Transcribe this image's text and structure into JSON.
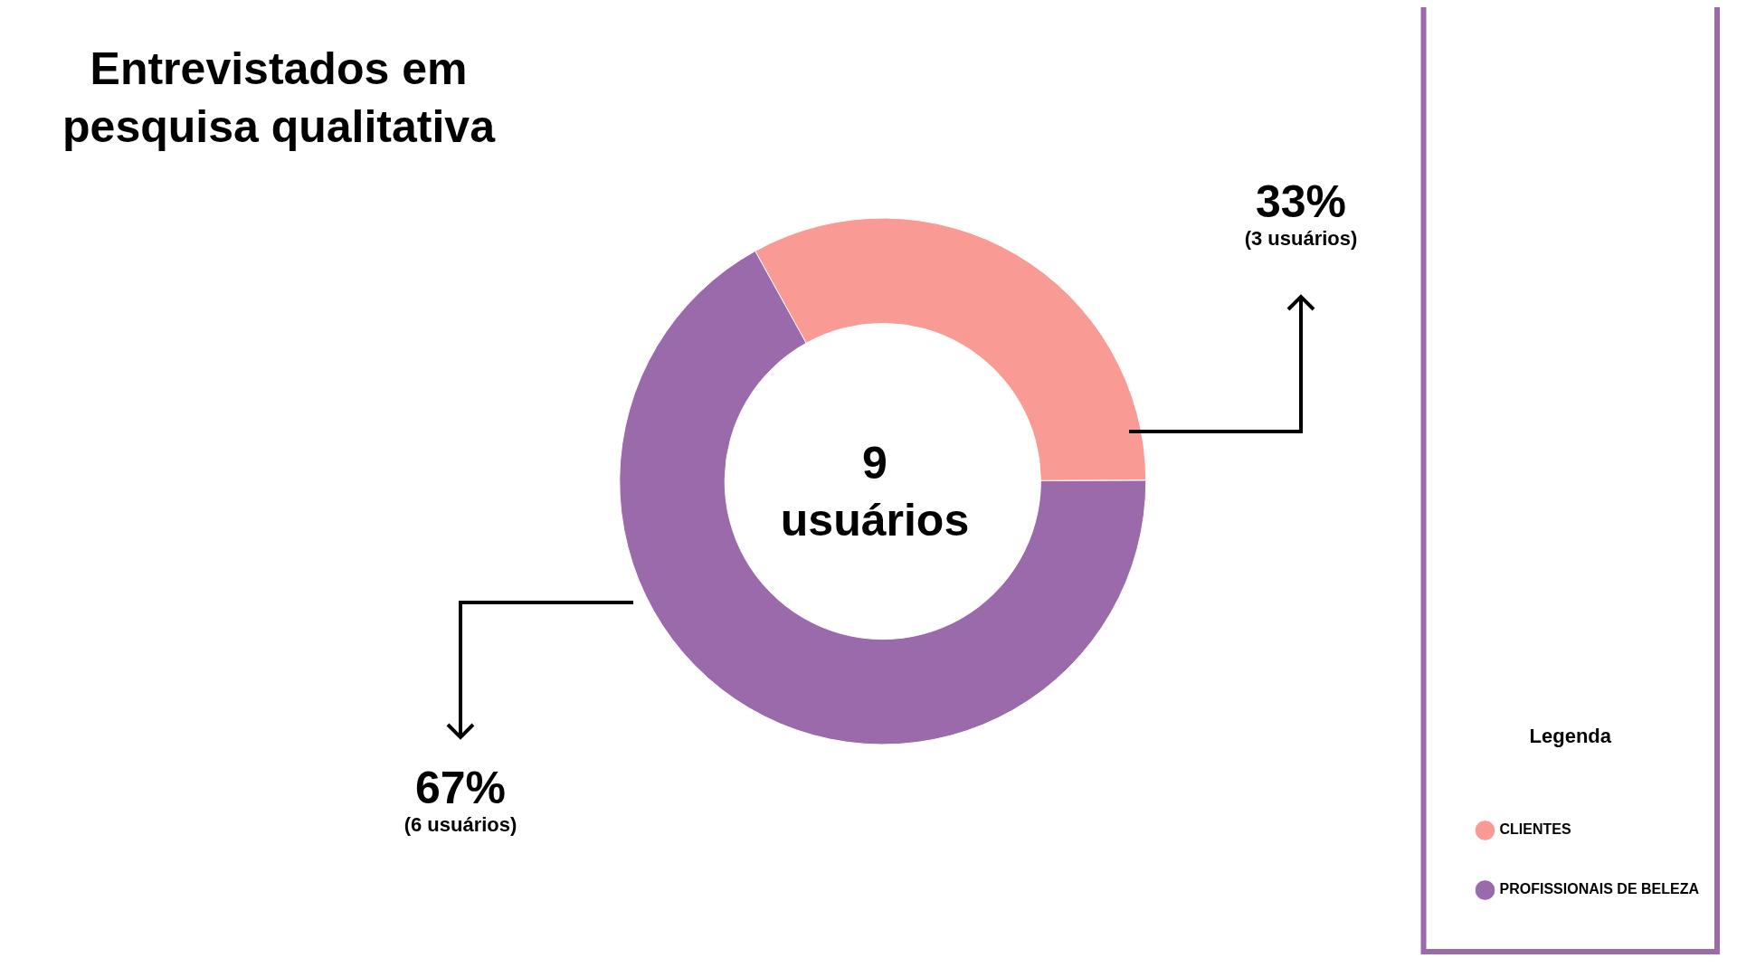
{
  "chart_data": {
    "type": "donut",
    "title": "Entrevistados em pesquisa qualitativa",
    "categories": [
      "CLIENTES",
      "PROFISSIONAIS DE BELEZA"
    ],
    "values": [
      33,
      67
    ],
    "colors": [
      "#f99b94",
      "#9a6aaa"
    ],
    "value_labels": [
      "33%",
      "67%"
    ],
    "annotations": [
      "(3 usuários)",
      "(6 usuários)",
      "9 usuários"
    ],
    "legend": "bottom right",
    "legend_title": "Legenda"
  }
}
